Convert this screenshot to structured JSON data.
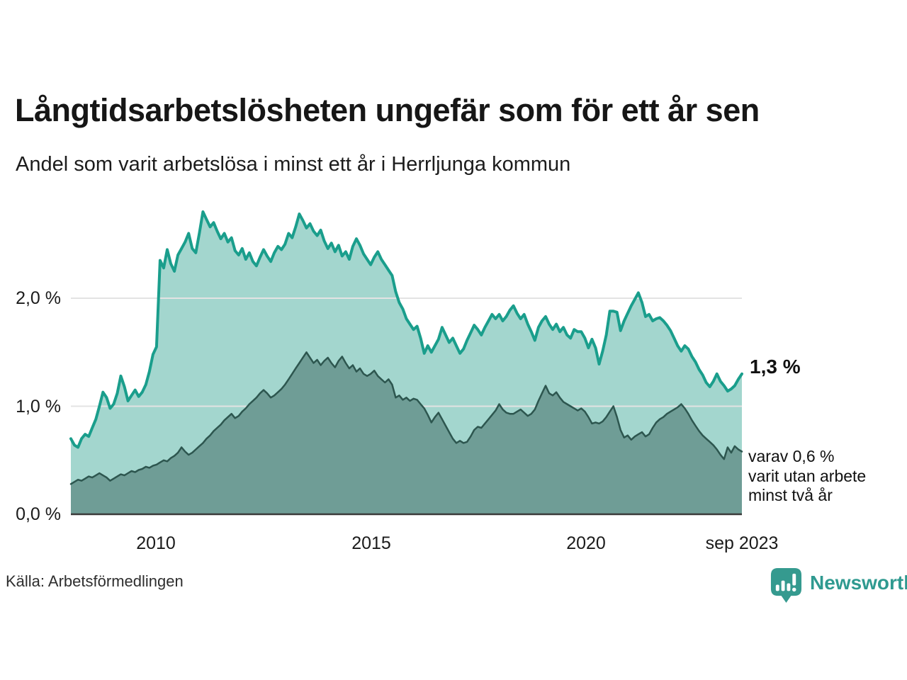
{
  "header": {
    "title": "Långtidsarbetslösheten ungefär som för ett år sen",
    "subtitle": "Andel som varit arbetslösa i minst ett år i Herrljunga kommun"
  },
  "annotations": {
    "latest_total": "1,3 %",
    "latest_two_years_lines": [
      "varav 0,6 %",
      "varit utan arbete",
      "minst två år"
    ]
  },
  "footer": {
    "source": "Källa: Arbetsförmedlingen",
    "brand": "Newsworthy"
  },
  "colors": {
    "line_1yr": "#1a9e8c",
    "fill_1yr": "#a3d6ce",
    "line_2yr": "#2d564f",
    "fill_2yr": "#6f9d96",
    "gridline": "#e3e3e3",
    "axis_line": "#3a3a3a",
    "brand_teal": "#359a8f"
  },
  "chart_data": {
    "type": "area",
    "title": "Långtidsarbetslösheten ungefär som för ett år sen",
    "subtitle": "Andel som varit arbetslösa i minst ett år i Herrljunga kommun",
    "unit": "%",
    "x_start_year": 2008,
    "x_start_month": 1,
    "x_end_label": "sep 2023",
    "points_per_year": 12,
    "ylim": [
      0,
      2.9
    ],
    "grid": "horizontal",
    "y_ticks": [
      {
        "value": 0,
        "label": "0,0 %"
      },
      {
        "value": 1,
        "label": "1,0 %"
      },
      {
        "value": 2,
        "label": "2,0 %"
      }
    ],
    "x_ticks": [
      {
        "year": 2010.0,
        "label": "2010"
      },
      {
        "year": 2015.0,
        "label": "2015"
      },
      {
        "year": 2020.0,
        "label": "2020"
      },
      {
        "year": 2023.667,
        "label": "sep 2023"
      }
    ],
    "series": [
      {
        "name": "Andel arbetslösa minst ett år",
        "end_label": "1,3 %",
        "end_value": 1.3,
        "line_color": "#1a9e8c",
        "fill_color": "#a3d6ce",
        "values": [
          0.7,
          0.64,
          0.62,
          0.7,
          0.74,
          0.72,
          0.8,
          0.88,
          1.0,
          1.13,
          1.08,
          0.98,
          1.02,
          1.12,
          1.28,
          1.18,
          1.05,
          1.1,
          1.15,
          1.09,
          1.13,
          1.2,
          1.32,
          1.48,
          1.55,
          2.35,
          2.28,
          2.45,
          2.32,
          2.25,
          2.4,
          2.46,
          2.52,
          2.6,
          2.46,
          2.42,
          2.6,
          2.8,
          2.73,
          2.66,
          2.7,
          2.62,
          2.55,
          2.6,
          2.52,
          2.56,
          2.44,
          2.4,
          2.46,
          2.36,
          2.42,
          2.34,
          2.3,
          2.38,
          2.45,
          2.39,
          2.34,
          2.42,
          2.48,
          2.45,
          2.5,
          2.6,
          2.56,
          2.66,
          2.78,
          2.72,
          2.65,
          2.69,
          2.62,
          2.58,
          2.63,
          2.53,
          2.46,
          2.51,
          2.43,
          2.49,
          2.39,
          2.43,
          2.36,
          2.48,
          2.55,
          2.49,
          2.41,
          2.36,
          2.31,
          2.38,
          2.43,
          2.36,
          2.31,
          2.26,
          2.21,
          2.06,
          1.96,
          1.9,
          1.81,
          1.76,
          1.71,
          1.74,
          1.63,
          1.49,
          1.56,
          1.5,
          1.56,
          1.62,
          1.73,
          1.66,
          1.59,
          1.63,
          1.56,
          1.49,
          1.53,
          1.61,
          1.68,
          1.75,
          1.71,
          1.66,
          1.73,
          1.79,
          1.85,
          1.81,
          1.85,
          1.79,
          1.83,
          1.89,
          1.93,
          1.86,
          1.81,
          1.85,
          1.76,
          1.69,
          1.61,
          1.73,
          1.79,
          1.83,
          1.76,
          1.71,
          1.76,
          1.69,
          1.73,
          1.66,
          1.63,
          1.71,
          1.69,
          1.69,
          1.63,
          1.54,
          1.62,
          1.54,
          1.39,
          1.51,
          1.66,
          1.88,
          1.88,
          1.87,
          1.7,
          1.79,
          1.86,
          1.93,
          1.99,
          2.05,
          1.96,
          1.83,
          1.85,
          1.79,
          1.81,
          1.82,
          1.79,
          1.75,
          1.7,
          1.63,
          1.56,
          1.51,
          1.56,
          1.53,
          1.46,
          1.41,
          1.34,
          1.29,
          1.22,
          1.18,
          1.23,
          1.3,
          1.23,
          1.19,
          1.14,
          1.16,
          1.19,
          1.25,
          1.3
        ]
      },
      {
        "name": "varav arbetslösa minst två år",
        "end_label": "varav 0,6 % varit utan arbete minst två år",
        "end_value": 0.6,
        "line_color": "#2d564f",
        "fill_color": "#6f9d96",
        "values": [
          0.28,
          0.3,
          0.32,
          0.31,
          0.33,
          0.35,
          0.34,
          0.36,
          0.38,
          0.36,
          0.34,
          0.31,
          0.33,
          0.35,
          0.37,
          0.36,
          0.38,
          0.4,
          0.39,
          0.41,
          0.42,
          0.44,
          0.43,
          0.45,
          0.46,
          0.48,
          0.5,
          0.49,
          0.52,
          0.54,
          0.57,
          0.62,
          0.58,
          0.55,
          0.57,
          0.6,
          0.63,
          0.66,
          0.7,
          0.73,
          0.77,
          0.8,
          0.83,
          0.87,
          0.9,
          0.93,
          0.89,
          0.91,
          0.95,
          0.98,
          1.02,
          1.05,
          1.08,
          1.12,
          1.15,
          1.12,
          1.08,
          1.1,
          1.13,
          1.16,
          1.2,
          1.25,
          1.3,
          1.35,
          1.4,
          1.45,
          1.5,
          1.45,
          1.4,
          1.43,
          1.38,
          1.42,
          1.45,
          1.4,
          1.36,
          1.42,
          1.46,
          1.4,
          1.35,
          1.38,
          1.32,
          1.35,
          1.3,
          1.28,
          1.3,
          1.33,
          1.28,
          1.25,
          1.22,
          1.25,
          1.2,
          1.08,
          1.1,
          1.06,
          1.08,
          1.05,
          1.07,
          1.06,
          1.02,
          0.98,
          0.92,
          0.85,
          0.9,
          0.94,
          0.88,
          0.82,
          0.76,
          0.7,
          0.66,
          0.68,
          0.66,
          0.67,
          0.72,
          0.78,
          0.81,
          0.8,
          0.84,
          0.88,
          0.92,
          0.96,
          1.02,
          0.97,
          0.94,
          0.93,
          0.93,
          0.95,
          0.97,
          0.94,
          0.91,
          0.93,
          0.97,
          1.05,
          1.12,
          1.19,
          1.12,
          1.1,
          1.13,
          1.08,
          1.04,
          1.02,
          1.0,
          0.98,
          0.96,
          0.98,
          0.95,
          0.9,
          0.84,
          0.85,
          0.84,
          0.86,
          0.9,
          0.95,
          1.0,
          0.9,
          0.78,
          0.71,
          0.73,
          0.69,
          0.72,
          0.74,
          0.76,
          0.72,
          0.74,
          0.8,
          0.85,
          0.88,
          0.9,
          0.93,
          0.95,
          0.97,
          0.99,
          1.02,
          0.98,
          0.93,
          0.87,
          0.82,
          0.77,
          0.73,
          0.7,
          0.67,
          0.64,
          0.6,
          0.55,
          0.51,
          0.62,
          0.57,
          0.63,
          0.6,
          0.58
        ]
      }
    ]
  }
}
